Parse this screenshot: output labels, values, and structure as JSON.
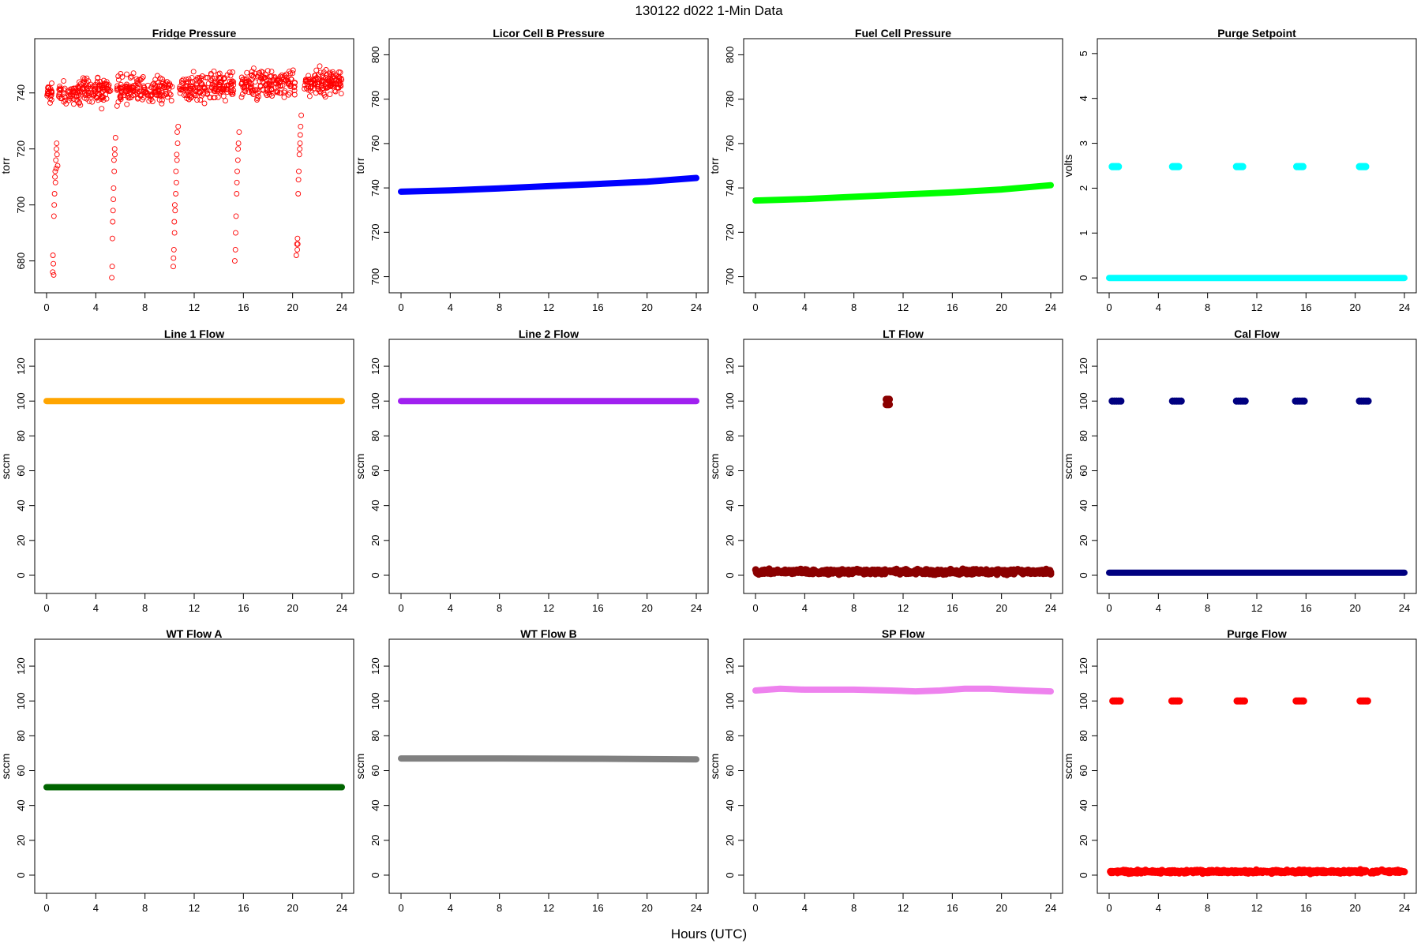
{
  "figure": {
    "title": "130122   d022   1-Min Data",
    "xlabel": "Hours (UTC)"
  },
  "chart_data": [
    {
      "type": "scatter",
      "title": "Fridge Pressure",
      "ylabel": "torr",
      "color": "#ff0000",
      "marker": "open-circle",
      "xlim": [
        0,
        24
      ],
      "xticks": [
        0,
        4,
        8,
        12,
        16,
        20,
        24
      ],
      "ylim": [
        672,
        756
      ],
      "yticks": [
        680,
        700,
        720,
        740
      ],
      "series": [
        {
          "kind": "noise",
          "x_range": [
            0,
            24
          ],
          "center": [
            [
              0,
              740
            ],
            [
              24,
              744
            ]
          ],
          "spread": 7,
          "count": 900,
          "gaps": [
            [
              0.45,
              0.95
            ],
            [
              5.2,
              5.7
            ],
            [
              10.2,
              10.8
            ],
            [
              15.2,
              15.8
            ],
            [
              20.2,
              20.9
            ]
          ]
        },
        {
          "kind": "points",
          "x": [
            0.5,
            0.55,
            0.6,
            0.65,
            0.7,
            0.75,
            0.8,
            0.85,
            0.9,
            0.52,
            0.62,
            0.72,
            0.82,
            0.58,
            0.68,
            0.78
          ],
          "y": [
            676,
            679,
            696,
            704,
            712,
            716,
            720,
            718,
            714,
            682,
            700,
            708,
            722,
            675,
            710,
            713
          ]
        },
        {
          "kind": "points",
          "x": [
            5.3,
            5.35,
            5.4,
            5.45,
            5.5,
            5.55,
            5.6,
            5.33,
            5.43,
            5.53,
            5.38,
            5.48
          ],
          "y": [
            674,
            688,
            698,
            706,
            712,
            718,
            724,
            678,
            702,
            720,
            694,
            716
          ]
        },
        {
          "kind": "points",
          "x": [
            10.3,
            10.35,
            10.4,
            10.45,
            10.5,
            10.55,
            10.6,
            10.65,
            10.7,
            10.32,
            10.42,
            10.52,
            10.62,
            10.38,
            10.58
          ],
          "y": [
            678,
            684,
            690,
            698,
            704,
            708,
            716,
            722,
            728,
            681,
            700,
            712,
            726,
            694,
            718
          ]
        },
        {
          "kind": "points",
          "x": [
            15.3,
            15.35,
            15.4,
            15.45,
            15.5,
            15.55,
            15.6,
            15.65,
            15.37,
            15.47,
            15.57
          ],
          "y": [
            680,
            684,
            696,
            704,
            712,
            716,
            722,
            726,
            690,
            708,
            720
          ]
        },
        {
          "kind": "points",
          "x": [
            20.3,
            20.35,
            20.4,
            20.45,
            20.5,
            20.55,
            20.6,
            20.65,
            20.7,
            20.38,
            20.48,
            20.58,
            20.42,
            20.62
          ],
          "y": [
            682,
            686,
            688,
            704,
            712,
            718,
            722,
            728,
            732,
            684,
            709,
            720,
            686,
            725
          ]
        }
      ]
    },
    {
      "type": "line",
      "title": "Licor Cell B Pressure",
      "ylabel": "torr",
      "color": "#0000ff",
      "marker": "filled-band",
      "xlim": [
        0,
        24
      ],
      "xticks": [
        0,
        4,
        8,
        12,
        16,
        20,
        24
      ],
      "ylim": [
        697,
        803
      ],
      "yticks": [
        700,
        720,
        740,
        760,
        780,
        800
      ],
      "series": [
        {
          "kind": "line",
          "x": [
            0,
            4,
            8,
            12,
            16,
            20,
            24
          ],
          "y": [
            738.3,
            738.9,
            739.8,
            740.8,
            741.8,
            742.8,
            744.5
          ]
        }
      ]
    },
    {
      "type": "line",
      "title": "Fuel Cell Pressure",
      "ylabel": "torr",
      "color": "#00ff00",
      "marker": "filled-band",
      "xlim": [
        0,
        24
      ],
      "xticks": [
        0,
        4,
        8,
        12,
        16,
        20,
        24
      ],
      "ylim": [
        697,
        803
      ],
      "yticks": [
        700,
        720,
        740,
        760,
        780,
        800
      ],
      "series": [
        {
          "kind": "line",
          "x": [
            0,
            4,
            8,
            12,
            16,
            20,
            24
          ],
          "y": [
            734.3,
            735,
            736,
            737,
            738,
            739.3,
            741.2
          ]
        }
      ]
    },
    {
      "type": "scatter",
      "title": "Purge Setpoint",
      "ylabel": "volts",
      "color": "#00ffff",
      "marker": "filled-band",
      "xlim": [
        0,
        24
      ],
      "xticks": [
        0,
        4,
        8,
        12,
        16,
        20,
        24
      ],
      "ylim": [
        -0.12,
        5.12
      ],
      "yticks": [
        0,
        1,
        2,
        3,
        4,
        5
      ],
      "series": [
        {
          "kind": "line",
          "x": [
            0,
            24
          ],
          "y": [
            0,
            0
          ]
        },
        {
          "kind": "clusters",
          "x": [
            0.5,
            5.4,
            10.6,
            15.5,
            20.6
          ],
          "y": 2.48,
          "width": 0.5
        }
      ]
    },
    {
      "type": "line",
      "title": "Line 1 Flow",
      "ylabel": "sccm",
      "color": "#ffa500",
      "marker": "filled-band",
      "xlim": [
        0,
        24
      ],
      "xticks": [
        0,
        4,
        8,
        12,
        16,
        20,
        24
      ],
      "ylim": [
        -5,
        130
      ],
      "yticks": [
        0,
        20,
        40,
        60,
        80,
        100,
        120
      ],
      "series": [
        {
          "kind": "line",
          "x": [
            0,
            24
          ],
          "y": [
            100,
            100
          ]
        }
      ]
    },
    {
      "type": "line",
      "title": "Line 2 Flow",
      "ylabel": "sccm",
      "color": "#a020f0",
      "marker": "filled-band",
      "xlim": [
        0,
        24
      ],
      "xticks": [
        0,
        4,
        8,
        12,
        16,
        20,
        24
      ],
      "ylim": [
        -5,
        130
      ],
      "yticks": [
        0,
        20,
        40,
        60,
        80,
        100,
        120
      ],
      "series": [
        {
          "kind": "line",
          "x": [
            0,
            24
          ],
          "y": [
            100,
            100
          ]
        }
      ]
    },
    {
      "type": "scatter",
      "title": "LT Flow",
      "ylabel": "sccm",
      "color": "#8b0000",
      "marker": "filled-band",
      "xlim": [
        0,
        24
      ],
      "xticks": [
        0,
        4,
        8,
        12,
        16,
        20,
        24
      ],
      "ylim": [
        -5,
        130
      ],
      "yticks": [
        0,
        20,
        40,
        60,
        80,
        100,
        120
      ],
      "series": [
        {
          "kind": "noise",
          "x_range": [
            0,
            24
          ],
          "center": [
            [
              0,
              2
            ],
            [
              24,
              2
            ]
          ],
          "spread": 1.8,
          "count": 700,
          "gaps": [
            [
              10.6,
              10.9
            ]
          ]
        },
        {
          "kind": "clusters",
          "x": [
            10.75
          ],
          "y": 100,
          "width": 0.25,
          "rows": [
            98,
            101
          ]
        }
      ]
    },
    {
      "type": "scatter",
      "title": "Cal Flow",
      "ylabel": "sccm",
      "color": "#000080",
      "marker": "filled-band",
      "xlim": [
        0,
        24
      ],
      "xticks": [
        0,
        4,
        8,
        12,
        16,
        20,
        24
      ],
      "ylim": [
        -5,
        130
      ],
      "yticks": [
        0,
        20,
        40,
        60,
        80,
        100,
        120
      ],
      "series": [
        {
          "kind": "line",
          "x": [
            0,
            24
          ],
          "y": [
            1.5,
            1.5
          ]
        },
        {
          "kind": "clusters",
          "x": [
            0.6,
            5.5,
            10.7,
            15.5,
            20.7
          ],
          "y": 100,
          "width": 0.7
        }
      ]
    },
    {
      "type": "line",
      "title": "WT Flow A",
      "ylabel": "sccm",
      "color": "#006400",
      "marker": "filled-band",
      "xlim": [
        0,
        24
      ],
      "xticks": [
        0,
        4,
        8,
        12,
        16,
        20,
        24
      ],
      "ylim": [
        -5,
        130
      ],
      "yticks": [
        0,
        20,
        40,
        60,
        80,
        100,
        120
      ],
      "series": [
        {
          "kind": "line",
          "x": [
            0,
            24
          ],
          "y": [
            50.5,
            50.5
          ]
        }
      ]
    },
    {
      "type": "line",
      "title": "WT Flow B",
      "ylabel": "sccm",
      "color": "#808080",
      "marker": "filled-band",
      "xlim": [
        0,
        24
      ],
      "xticks": [
        0,
        4,
        8,
        12,
        16,
        20,
        24
      ],
      "ylim": [
        -5,
        130
      ],
      "yticks": [
        0,
        20,
        40,
        60,
        80,
        100,
        120
      ],
      "series": [
        {
          "kind": "line",
          "x": [
            0,
            8,
            16,
            24
          ],
          "y": [
            67,
            67,
            66.8,
            66.5
          ]
        }
      ]
    },
    {
      "type": "line",
      "title": "SP Flow",
      "ylabel": "sccm",
      "color": "#ee82ee",
      "marker": "filled-band",
      "xlim": [
        0,
        24
      ],
      "xticks": [
        0,
        4,
        8,
        12,
        16,
        20,
        24
      ],
      "ylim": [
        -5,
        130
      ],
      "yticks": [
        0,
        20,
        40,
        60,
        80,
        100,
        120
      ],
      "series": [
        {
          "kind": "line",
          "x": [
            0,
            2,
            4,
            8,
            11,
            13,
            15,
            17,
            19,
            22,
            24
          ],
          "y": [
            106,
            107,
            106.5,
            106.5,
            106,
            105.5,
            106,
            107,
            107,
            106,
            105.5
          ]
        }
      ]
    },
    {
      "type": "scatter",
      "title": "Purge Flow",
      "ylabel": "sccm",
      "color": "#ff0000",
      "marker": "filled-band",
      "xlim": [
        0,
        24
      ],
      "xticks": [
        0,
        4,
        8,
        12,
        16,
        20,
        24
      ],
      "ylim": [
        -5,
        130
      ],
      "yticks": [
        0,
        20,
        40,
        60,
        80,
        100,
        120
      ],
      "series": [
        {
          "kind": "noise",
          "x_range": [
            0,
            24
          ],
          "center": [
            [
              0,
              2
            ],
            [
              24,
              2
            ]
          ],
          "spread": 1.2,
          "count": 500,
          "gaps": []
        },
        {
          "kind": "clusters",
          "x": [
            0.6,
            5.4,
            10.7,
            15.5,
            20.7
          ],
          "y": 100,
          "width": 0.6
        }
      ]
    }
  ]
}
